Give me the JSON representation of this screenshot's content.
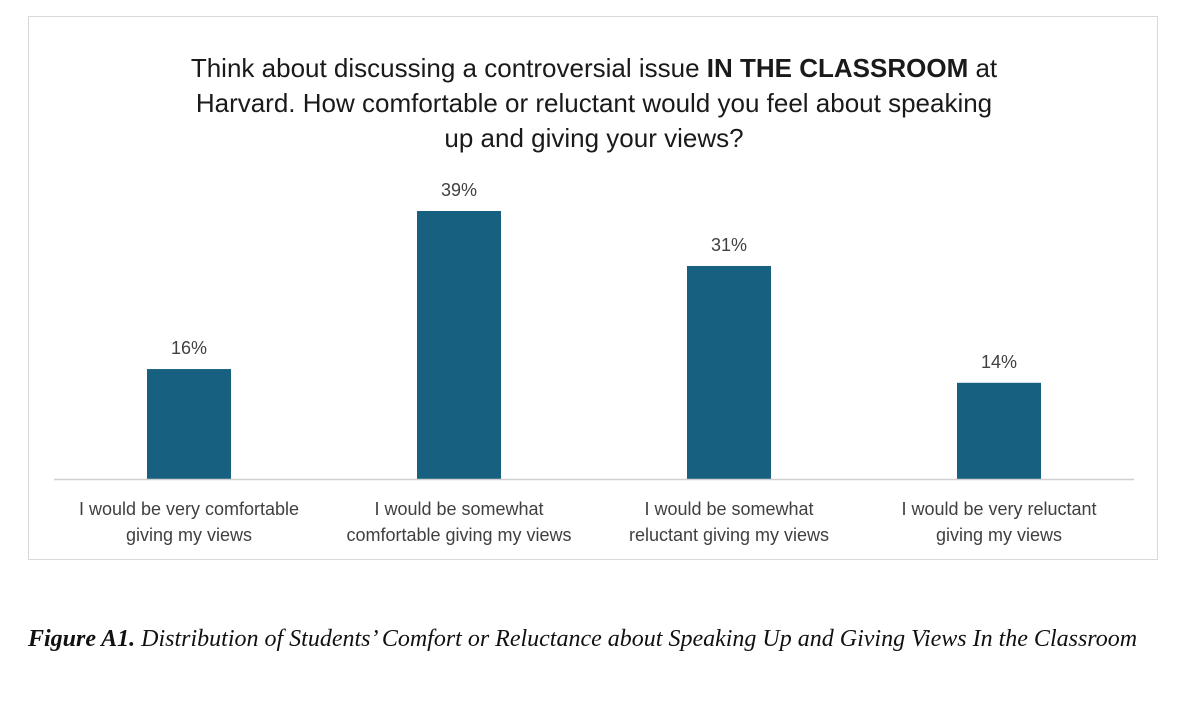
{
  "chart_data": {
    "type": "bar",
    "title_parts": {
      "line1_pre": "Think about discussing a controversial issue ",
      "line1_bold": "IN THE CLASSROOM",
      "line1_post": " at",
      "line2": "Harvard. How comfortable or reluctant would you feel about speaking",
      "line3": "up and giving your views?"
    },
    "categories": [
      [
        "I would be very comfortable",
        "giving my views"
      ],
      [
        "I would be somewhat",
        "comfortable giving my views"
      ],
      [
        "I would be somewhat",
        "reluctant giving my views"
      ],
      [
        "I would be very reluctant",
        "giving my views"
      ]
    ],
    "values": [
      16,
      39,
      31,
      14
    ],
    "data_labels": [
      "16%",
      "39%",
      "31%",
      "14%"
    ],
    "bar_color": "#17607f",
    "ylim": [
      0,
      42
    ],
    "grid": false,
    "legend": "none"
  },
  "caption": {
    "label": "Figure A1.",
    "text": " Distribution of Students’ Comfort or Reluctance about Speaking Up and Giving Views In the Classroom"
  }
}
